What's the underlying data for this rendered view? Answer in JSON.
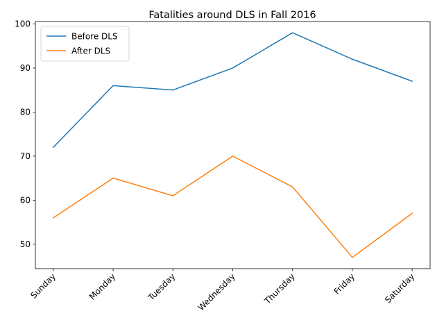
{
  "chart_data": {
    "type": "line",
    "title": "Fatalities around DLS in Fall 2016",
    "xlabel": "",
    "ylabel": "",
    "categories": [
      "Sunday",
      "Monday",
      "Tuesday",
      "Wednesday",
      "Thursday",
      "Friday",
      "Saturday"
    ],
    "series": [
      {
        "name": "Before DLS",
        "color": "#1f77b4",
        "values": [
          72,
          86,
          85,
          90,
          98,
          92,
          87
        ]
      },
      {
        "name": "After DLS",
        "color": "#ff7f0e",
        "values": [
          56,
          65,
          61,
          70,
          63,
          47,
          57
        ]
      }
    ],
    "ylim": [
      44.45,
      100.55
    ],
    "yticks": [
      50,
      60,
      70,
      80,
      90,
      100
    ],
    "grid": false,
    "legend": "upper-left"
  }
}
